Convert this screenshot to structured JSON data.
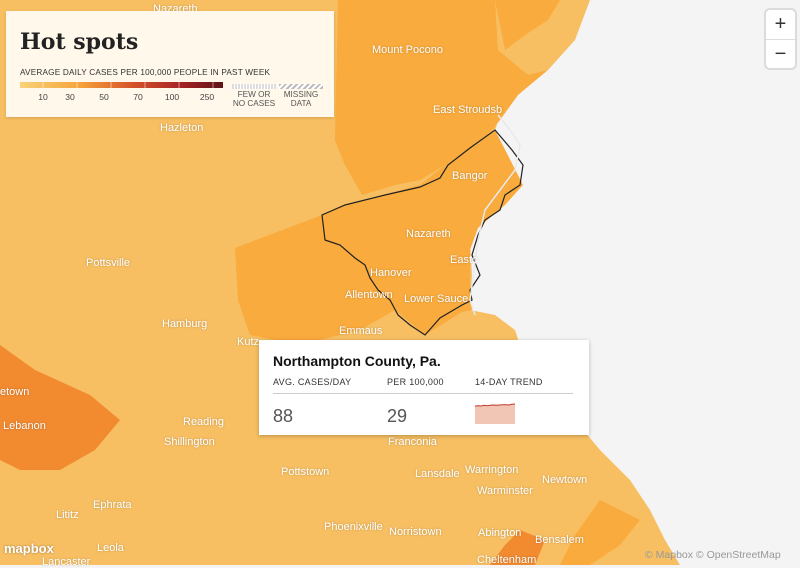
{
  "legend": {
    "title": "Hot spots",
    "subtitle": "AVERAGE DAILY CASES PER 100,000 PEOPLE IN PAST WEEK",
    "ticks": [
      "10",
      "30",
      "50",
      "70",
      "100",
      "250"
    ],
    "few_label_1": "FEW OR",
    "few_label_2": "NO CASES",
    "missing_label_1": "MISSING",
    "missing_label_2": "DATA"
  },
  "zoom": {
    "in": "+",
    "out": "−"
  },
  "places": {
    "nazareth_top": "Nazareth",
    "mount_pocono": "Mount Pocono",
    "east_stroudsburg": "East Stroudsb",
    "hazleton": "Hazleton",
    "bangor": "Bangor",
    "nazareth": "Nazareth",
    "easton": "Easto",
    "pottsville": "Pottsville",
    "hanover": "Hanover",
    "allentown": "Allentown",
    "lower_saucon": "Lower Sauce",
    "hamburg": "Hamburg",
    "emmaus": "Emmaus",
    "kutztown": "Kutz",
    "lebanon_twp": "etown",
    "lebanon": "Lebanon",
    "reading": "Reading",
    "shillington": "Shillington",
    "franconia": "Franconia",
    "pottstown": "Pottstown",
    "lansdale": "Lansdale",
    "warrington": "Warrington",
    "warminster": "Warminster",
    "newtown": "Newtown",
    "ephrata": "Ephrata",
    "lititz": "Lititz",
    "phoenixville": "Phoenixville",
    "norristown": "Norristown",
    "abington": "Abington",
    "bensalem": "Bensalem",
    "leola": "Leola",
    "lancaster": "Lancaster",
    "cheltenham": "Cheltenham"
  },
  "tooltip": {
    "county": "Northampton County, Pa.",
    "col1_label": "AVG. CASES/DAY",
    "col2_label": "PER 100,000",
    "col3_label": "14-DAY TREND",
    "avg_cases": "88",
    "per_100k": "29",
    "trend": [
      24,
      25,
      24,
      26,
      25,
      26,
      27,
      26,
      27,
      28,
      28,
      27,
      29,
      30
    ]
  },
  "attribution": "© Mapbox © OpenStreetMap",
  "logo": "mapbox",
  "colors": {
    "light": "#f7bf62",
    "medium": "#f9ab3d",
    "dark": "#f28a30",
    "water": "#f4f4f4",
    "outline": "#222222"
  }
}
